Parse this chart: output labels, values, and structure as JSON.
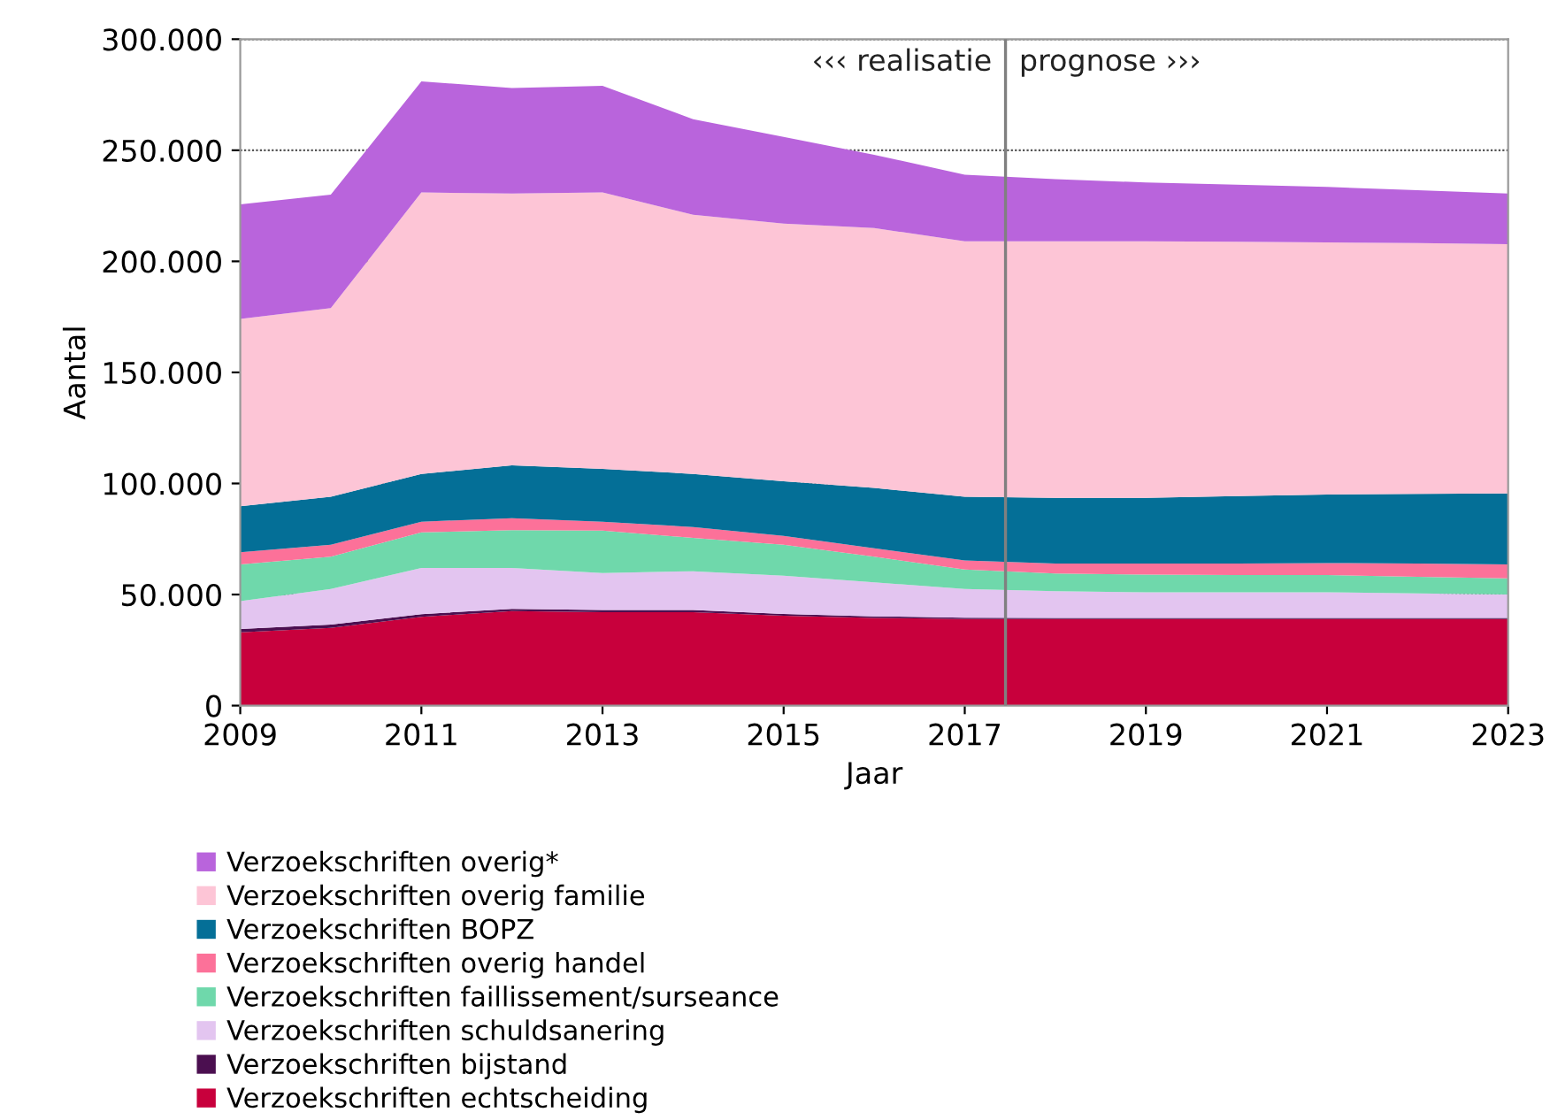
{
  "chart_data": {
    "type": "area",
    "stacked": true,
    "xlabel": "Jaar",
    "ylabel": "Aantal",
    "x": [
      2009,
      2010,
      2011,
      2012,
      2013,
      2014,
      2015,
      2016,
      2017,
      2018,
      2019,
      2020,
      2021,
      2022,
      2023
    ],
    "series": [
      {
        "name": "Verzoekschriften echtscheiding",
        "color": "#c8003c",
        "values": [
          33000,
          35000,
          40000,
          42500,
          42000,
          42000,
          40500,
          39500,
          39000,
          39000,
          39000,
          39000,
          39000,
          39000,
          39000
        ]
      },
      {
        "name": "Verzoekschriften bijstand",
        "color": "#4b0f50",
        "values": [
          1500,
          1500,
          1200,
          1000,
          1000,
          1000,
          800,
          700,
          600,
          500,
          500,
          500,
          500,
          500,
          500
        ]
      },
      {
        "name": "Verzoekschriften schuldsanering",
        "color": "#e3c5f0",
        "values": [
          12500,
          16000,
          20800,
          18500,
          16700,
          17500,
          17200,
          15300,
          12900,
          12000,
          11500,
          11500,
          11500,
          11000,
          10500
        ]
      },
      {
        "name": "Verzoekschriften faillissement/surseance",
        "color": "#6fd8ab",
        "values": [
          16600,
          14500,
          16000,
          17000,
          19100,
          15000,
          13900,
          11500,
          8800,
          8000,
          8000,
          7800,
          7800,
          7500,
          7300
        ]
      },
      {
        "name": "Verzoekschriften overig handel",
        "color": "#fc7199",
        "values": [
          5400,
          5400,
          4800,
          5400,
          4000,
          4900,
          4000,
          3800,
          4000,
          4500,
          5000,
          5200,
          5400,
          6000,
          6300
        ]
      },
      {
        "name": "Verzoekschriften BOPZ",
        "color": "#046f97",
        "values": [
          20700,
          21600,
          21500,
          23800,
          23800,
          23900,
          24600,
          27200,
          28700,
          29500,
          29500,
          30300,
          30800,
          31300,
          31900
        ]
      },
      {
        "name": "Verzoekschriften overig familie",
        "color": "#fdc5d6",
        "values": [
          84400,
          85000,
          126700,
          122300,
          124400,
          116700,
          116000,
          117000,
          115000,
          115500,
          115500,
          114500,
          113500,
          112900,
          112200
        ]
      },
      {
        "name": "Verzoekschriften overig*",
        "color": "#b964dc",
        "values": [
          51500,
          51000,
          50000,
          47500,
          48000,
          43000,
          39000,
          33000,
          30000,
          28000,
          26500,
          25700,
          25000,
          23800,
          22800
        ]
      }
    ],
    "xlim": [
      2009,
      2023
    ],
    "xticks": [
      2009,
      2011,
      2013,
      2015,
      2017,
      2019,
      2021,
      2023
    ],
    "ylim": [
      0,
      300000
    ],
    "yticks": [
      {
        "value": 0,
        "label": "0"
      },
      {
        "value": 50000,
        "label": "50.000"
      },
      {
        "value": 100000,
        "label": "100.000"
      },
      {
        "value": 150000,
        "label": "150.000"
      },
      {
        "value": 200000,
        "label": "200.000"
      },
      {
        "value": 250000,
        "label": "250.000"
      },
      {
        "value": 300000,
        "label": "300.000"
      }
    ],
    "ref_lines": [
      {
        "axis": "x",
        "value": 2017.45,
        "label": null,
        "color": "#808080"
      }
    ],
    "annotations": [
      "‹‹‹ realisatie",
      "prognose ›››"
    ],
    "grid": "y",
    "legend": "bottom"
  }
}
